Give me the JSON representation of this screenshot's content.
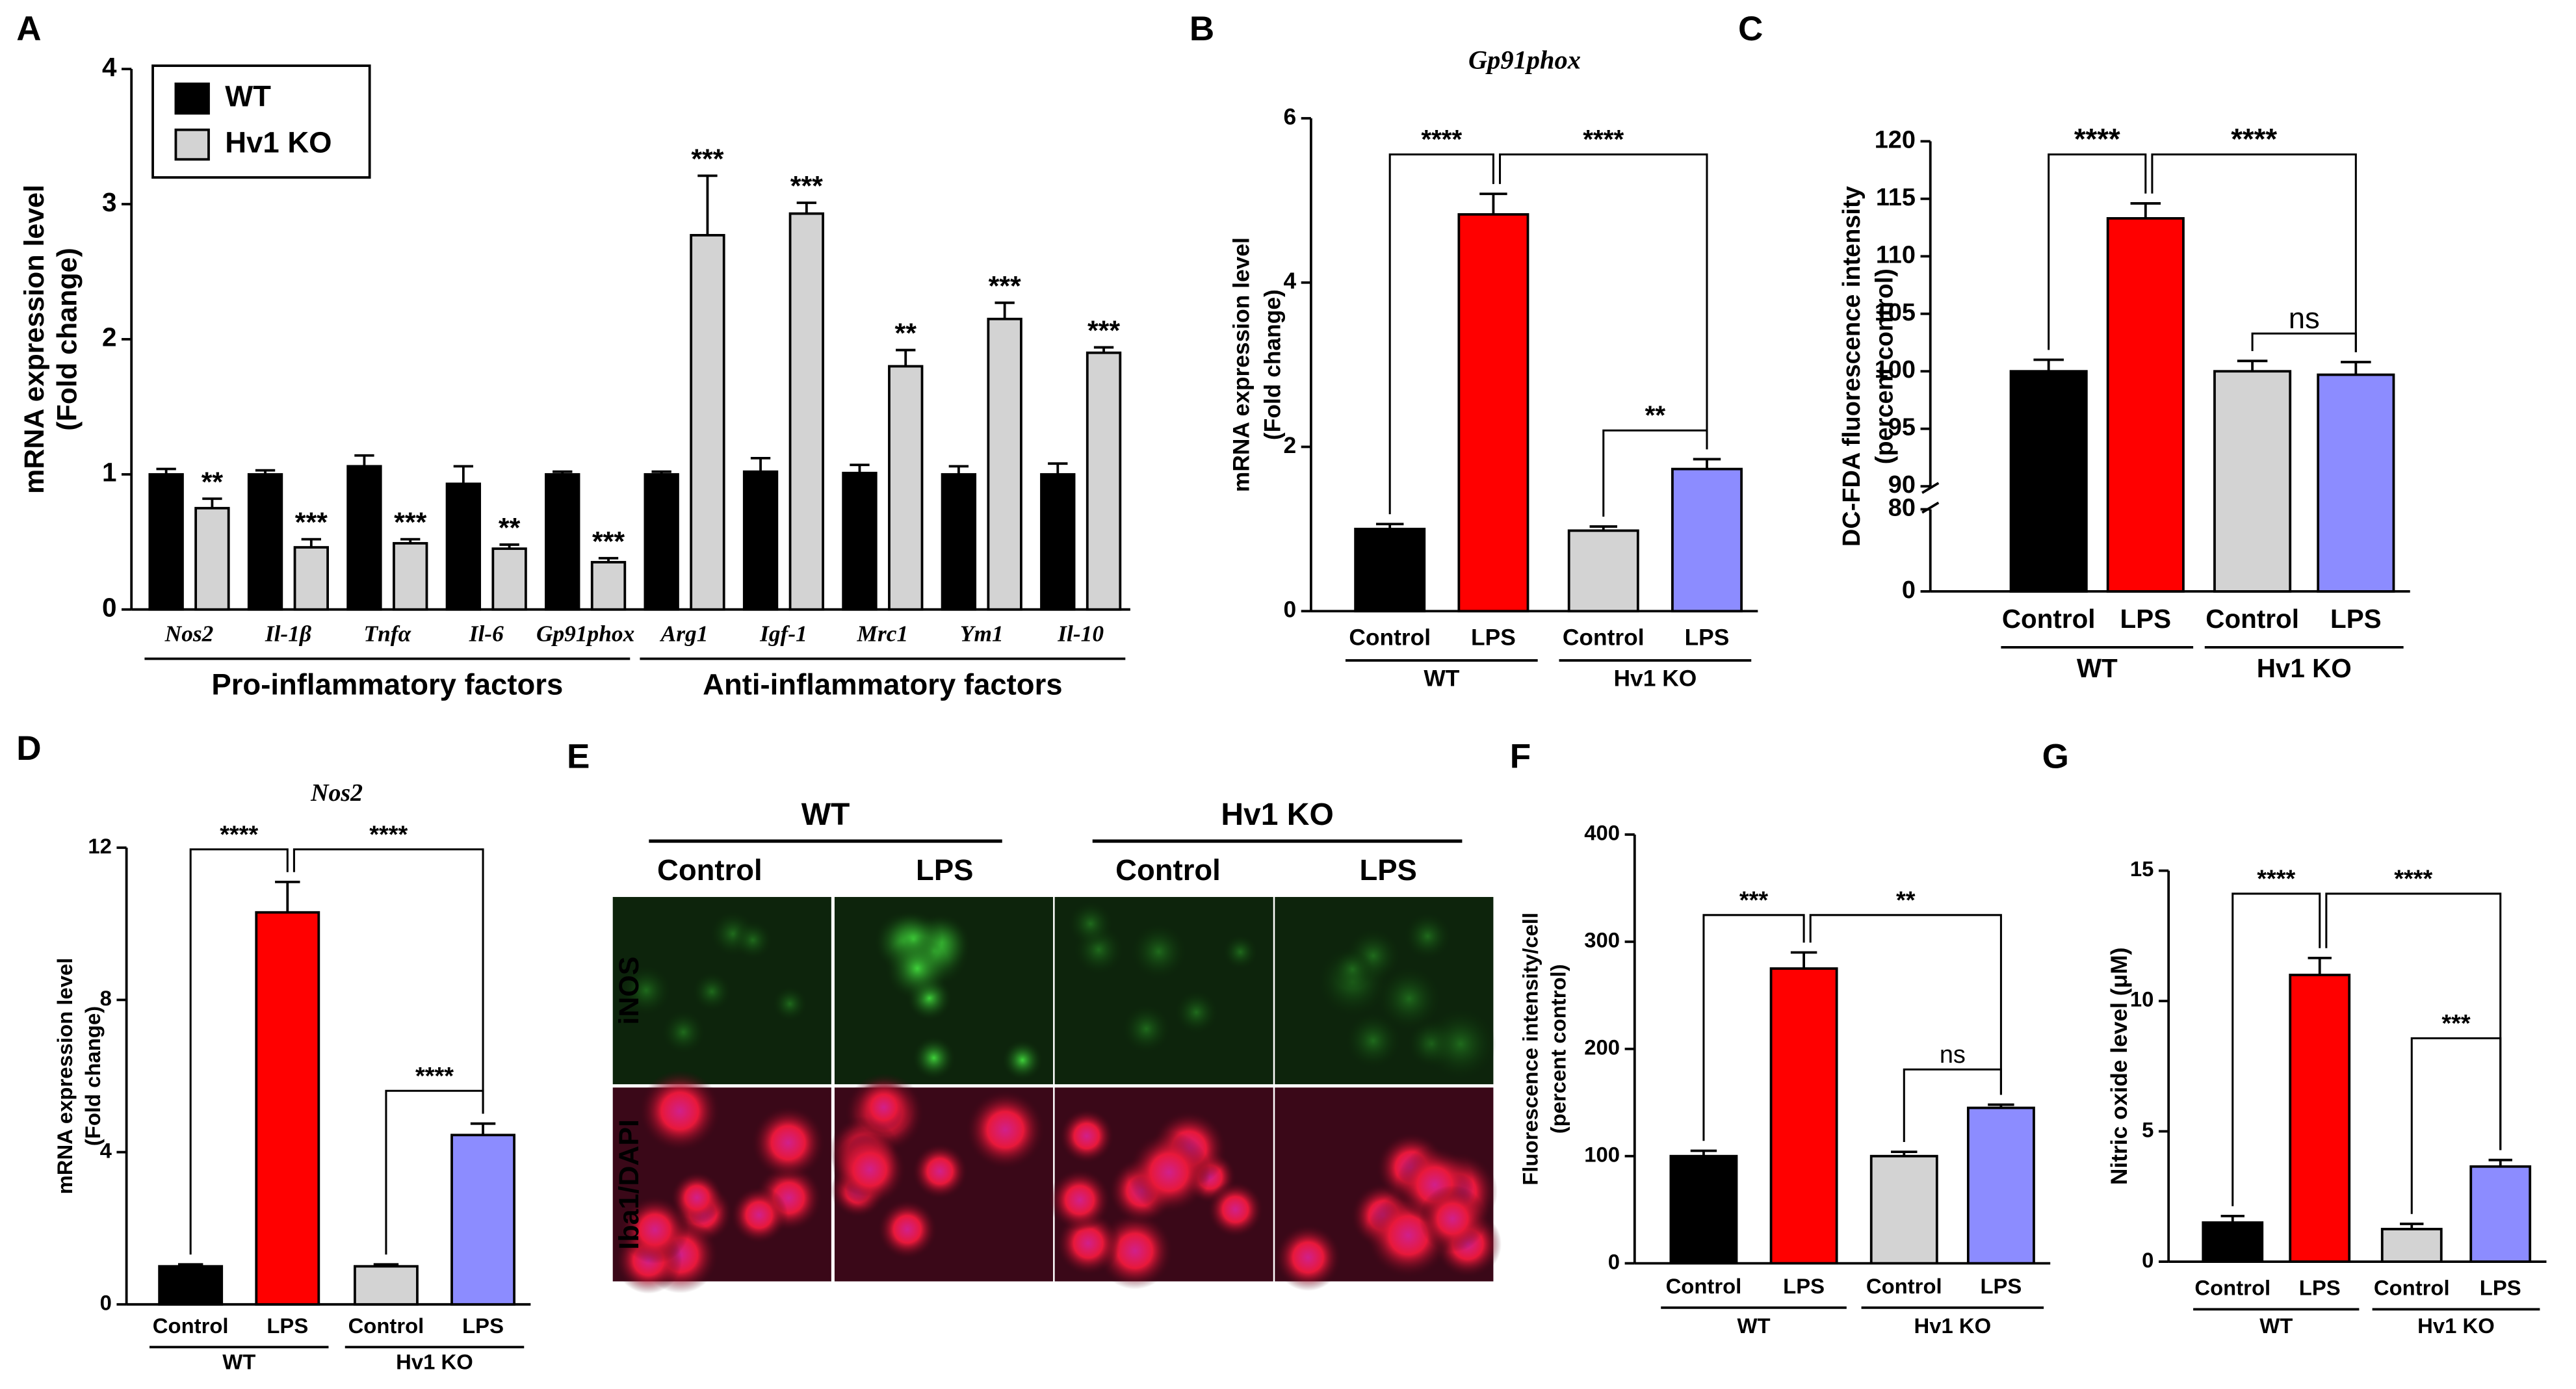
{
  "chart_data": [
    {
      "type": "grouped-bar",
      "panel": "A",
      "ylabel": [
        "mRNA expression level",
        "(Fold change)"
      ],
      "categories": [
        "Nos2",
        "Il-1β",
        "Tnfα",
        "Il-6",
        "Gp91phox",
        "Arg1",
        "Igf-1",
        "Mrc1",
        "Ym1",
        "Il-10"
      ],
      "series": [
        {
          "name": "WT",
          "color": "#000000",
          "values": [
            1.0,
            1.0,
            1.06,
            0.93,
            1.0,
            1.0,
            1.02,
            1.01,
            1.0,
            1.0
          ],
          "errors": [
            0.04,
            0.03,
            0.08,
            0.13,
            0.02,
            0.02,
            0.1,
            0.06,
            0.06,
            0.08
          ]
        },
        {
          "name": "Hv1 KO",
          "color": "#d3d3d3",
          "values": [
            0.75,
            0.46,
            0.49,
            0.45,
            0.35,
            2.77,
            2.93,
            1.8,
            2.15,
            1.9
          ],
          "errors": [
            0.07,
            0.06,
            0.03,
            0.03,
            0.03,
            0.44,
            0.08,
            0.12,
            0.12,
            0.04
          ]
        }
      ],
      "significance": [
        "**",
        "***",
        "***",
        "**",
        "***",
        "***",
        "***",
        "**",
        "***",
        "***"
      ],
      "groups": [
        "Pro-inflammatory factors",
        "Anti-inflammatory factors"
      ],
      "ylim": [
        0,
        4
      ],
      "yticks": [
        0,
        1,
        2,
        3,
        4
      ],
      "legend": "upper left"
    },
    {
      "type": "bar",
      "panel": "B",
      "title": "Gp91phox",
      "ylabel": [
        "mRNA expression level",
        "(Fold change)"
      ],
      "categories": [
        "Control",
        "LPS",
        "Control",
        "LPS"
      ],
      "groups": [
        "WT",
        "Hv1 KO"
      ],
      "values": [
        1.0,
        4.83,
        0.98,
        1.73
      ],
      "errors": [
        0.06,
        0.25,
        0.05,
        0.12
      ],
      "colors": [
        "#000000",
        "#ff0000",
        "#d3d3d3",
        "#8c8cff"
      ],
      "significance": [
        "****",
        "****",
        "**"
      ],
      "ylim": [
        0,
        6
      ],
      "yticks": [
        0,
        2,
        4,
        6
      ]
    },
    {
      "type": "bar",
      "panel": "C",
      "ylabel": [
        "DC-FDA fluorescence intensity",
        "(percent control)"
      ],
      "categories": [
        "Control",
        "LPS",
        "Control",
        "LPS"
      ],
      "groups": [
        "WT",
        "Hv1 KO"
      ],
      "values": [
        100,
        113.3,
        100,
        99.7
      ],
      "errors": [
        1.0,
        1.3,
        0.9,
        1.1
      ],
      "colors": [
        "#000000",
        "#ff0000",
        "#d3d3d3",
        "#8c8cff"
      ],
      "significance": [
        "****",
        "****",
        "ns"
      ],
      "ylim": [
        0,
        120
      ],
      "axis_break": [
        80,
        90
      ],
      "yticks": [
        0,
        80,
        90,
        95,
        100,
        105,
        110,
        115,
        120
      ]
    },
    {
      "type": "bar",
      "panel": "D",
      "title": "Nos2",
      "ylabel": [
        "mRNA expression level",
        "(Fold change)"
      ],
      "categories": [
        "Control",
        "LPS",
        "Control",
        "LPS"
      ],
      "groups": [
        "WT",
        "Hv1 KO"
      ],
      "values": [
        1.0,
        10.3,
        1.0,
        4.45
      ],
      "errors": [
        0.05,
        0.8,
        0.05,
        0.3
      ],
      "colors": [
        "#000000",
        "#ff0000",
        "#d3d3d3",
        "#8c8cff"
      ],
      "significance": [
        "****",
        "****",
        "****"
      ],
      "ylim": [
        0,
        12
      ],
      "yticks": [
        0,
        4,
        8,
        12
      ]
    },
    {
      "type": "bar",
      "panel": "F",
      "ylabel": [
        "Fluorescence intensity/cell",
        "(percent control)"
      ],
      "categories": [
        "Control",
        "LPS",
        "Control",
        "LPS"
      ],
      "groups": [
        "WT",
        "Hv1 KO"
      ],
      "values": [
        100,
        275,
        100,
        145
      ],
      "errors": [
        5,
        15,
        4,
        3
      ],
      "colors": [
        "#000000",
        "#ff0000",
        "#d3d3d3",
        "#8c8cff"
      ],
      "significance": [
        "***",
        "**",
        "ns"
      ],
      "ylim": [
        0,
        400
      ],
      "yticks": [
        0,
        100,
        200,
        300,
        400
      ]
    },
    {
      "type": "bar",
      "panel": "G",
      "ylabel": [
        "Nitric oxide level (μM)"
      ],
      "categories": [
        "Control",
        "LPS",
        "Control",
        "LPS"
      ],
      "groups": [
        "WT",
        "Hv1 KO"
      ],
      "values": [
        1.5,
        11.0,
        1.25,
        3.65
      ],
      "errors": [
        0.25,
        0.65,
        0.2,
        0.25
      ],
      "colors": [
        "#000000",
        "#ff0000",
        "#d3d3d3",
        "#8c8cff"
      ],
      "significance": [
        "****",
        "****",
        "***"
      ],
      "ylim": [
        0,
        15
      ],
      "yticks": [
        0,
        5,
        10,
        15
      ]
    }
  ],
  "panel_e": {
    "panel": "E",
    "groups": [
      "WT",
      "Hv1 KO"
    ],
    "columns": [
      "Control",
      "LPS",
      "Control",
      "LPS"
    ],
    "rows": [
      "iNOS",
      "Iba1/DAPI"
    ]
  }
}
